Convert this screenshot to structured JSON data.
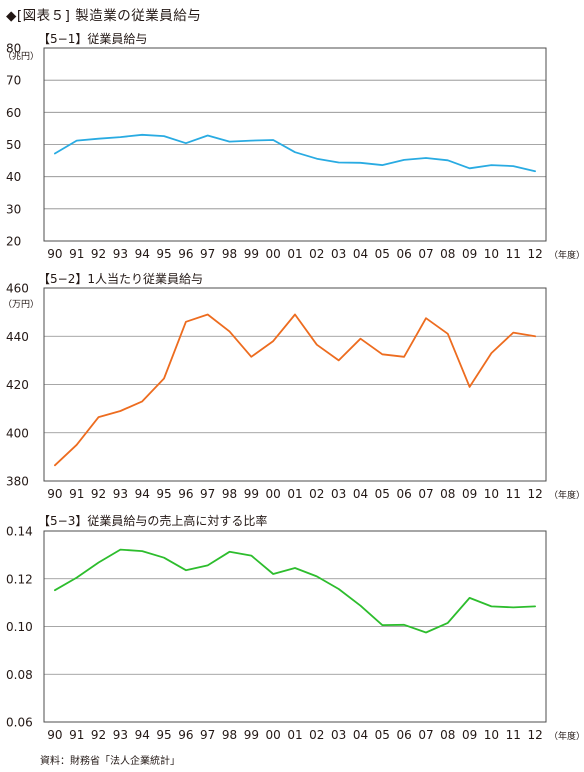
{
  "figure_title": "◆[図表５] 製造業の従業員給与",
  "source": "資料：財務省「法人企業統計」",
  "chart_data": [
    {
      "type": "line",
      "title": "【5−1】従業員給与",
      "ylabel": "（兆円）",
      "xlabel": "（年度）",
      "color": "#29abe2",
      "ylim": [
        20,
        80
      ],
      "yticks": [
        20,
        30,
        40,
        50,
        60,
        70,
        80
      ],
      "ytick_labels": [
        "20",
        "30",
        "40",
        "50",
        "60",
        "70",
        "80"
      ],
      "grid": true,
      "categories": [
        "90",
        "91",
        "92",
        "93",
        "94",
        "95",
        "96",
        "97",
        "98",
        "99",
        "00",
        "01",
        "02",
        "03",
        "04",
        "05",
        "06",
        "07",
        "08",
        "09",
        "10",
        "11",
        "12"
      ],
      "values": [
        47.2,
        51.2,
        51.8,
        52.3,
        53.0,
        52.6,
        50.4,
        52.8,
        50.9,
        51.2,
        51.4,
        47.6,
        45.6,
        44.4,
        44.3,
        43.6,
        45.2,
        45.8,
        45.1,
        42.6,
        43.6,
        43.3,
        41.7
      ]
    },
    {
      "type": "line",
      "title": "【5−2】1人当たり従業員給与",
      "ylabel": "（万円）",
      "xlabel": "（年度）",
      "color": "#ed6c1f",
      "ylim": [
        380,
        460
      ],
      "yticks": [
        380,
        400,
        420,
        440,
        460
      ],
      "ytick_labels": [
        "380",
        "400",
        "420",
        "440",
        "460"
      ],
      "grid": true,
      "categories": [
        "90",
        "91",
        "92",
        "93",
        "94",
        "95",
        "96",
        "97",
        "98",
        "99",
        "00",
        "01",
        "02",
        "03",
        "04",
        "05",
        "06",
        "07",
        "08",
        "09",
        "10",
        "11",
        "12"
      ],
      "values": [
        386.5,
        395,
        406.5,
        409,
        413,
        422.5,
        446,
        449,
        442,
        431.5,
        438,
        449,
        436.5,
        430,
        439,
        432.5,
        431.5,
        447.5,
        441,
        419,
        433,
        441.5,
        440
      ]
    },
    {
      "type": "line",
      "title": "【5−3】従業員給与の売上高に対する比率",
      "ylabel": "",
      "xlabel": "（年度）",
      "color": "#2dbd2d",
      "ylim": [
        0.06,
        0.14
      ],
      "yticks": [
        0.06,
        0.08,
        0.1,
        0.12,
        0.14
      ],
      "ytick_labels": [
        "0.06",
        "0.08",
        "0.10",
        "0.12",
        "0.14"
      ],
      "grid": true,
      "categories": [
        "90",
        "91",
        "92",
        "93",
        "94",
        "95",
        "96",
        "97",
        "98",
        "99",
        "00",
        "01",
        "02",
        "03",
        "04",
        "05",
        "06",
        "07",
        "08",
        "09",
        "10",
        "11",
        "12"
      ],
      "values": [
        0.1152,
        0.1205,
        0.1268,
        0.1322,
        0.1316,
        0.1288,
        0.1236,
        0.1256,
        0.1313,
        0.1297,
        0.122,
        0.1245,
        0.121,
        0.1157,
        0.1087,
        0.1006,
        0.1007,
        0.0975,
        0.1015,
        0.112,
        0.1084,
        0.108,
        0.1084
      ]
    }
  ]
}
